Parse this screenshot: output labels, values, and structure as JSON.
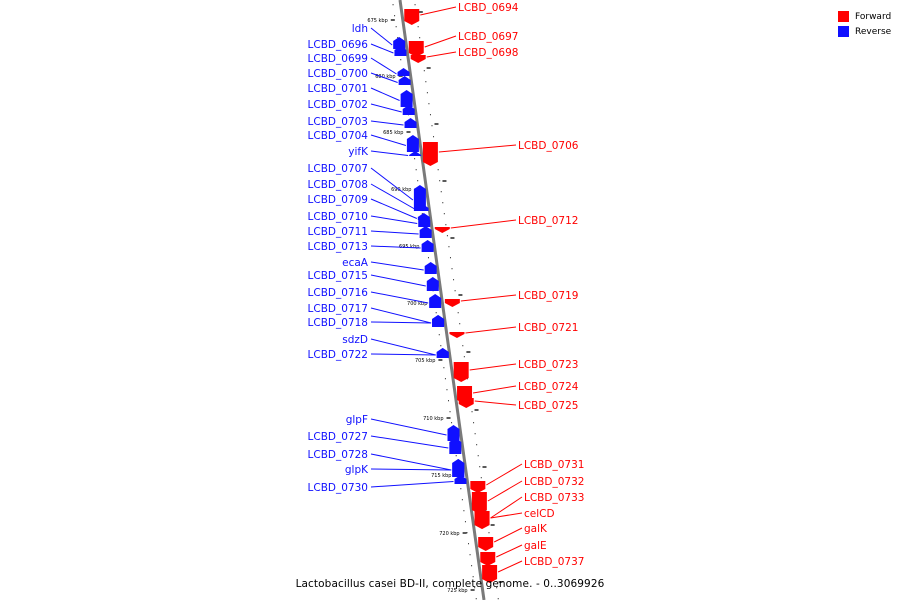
{
  "colors": {
    "forward": "#ff0000",
    "reverse": "#1010ff",
    "backbone": "#7a7a7a"
  },
  "legend": [
    {
      "label": "Forward",
      "color": "#ff0000"
    },
    {
      "label": "Reverse",
      "color": "#1010ff"
    }
  ],
  "caption": "Lactobacillus casei BD-II, complete genome. - 0..3069926",
  "ticks": [
    "675 kbp",
    "680 kbp",
    "685 kbp",
    "690 kbp",
    "695 kbp",
    "700 kbp",
    "705 kbp",
    "710 kbp",
    "715 kbp",
    "720 kbp",
    "725 kbp"
  ],
  "reverse_genes": [
    "ldh",
    "LCBD_0696",
    "LCBD_0699",
    "LCBD_0700",
    "LCBD_0701",
    "LCBD_0702",
    "LCBD_0703",
    "LCBD_0704",
    "yifK",
    "LCBD_0707",
    "LCBD_0708",
    "LCBD_0709",
    "LCBD_0710",
    "LCBD_0711",
    "LCBD_0713",
    "ecaA",
    "LCBD_0715",
    "LCBD_0716",
    "LCBD_0717",
    "LCBD_0718",
    "sdzD",
    "LCBD_0722",
    "glpF",
    "LCBD_0727",
    "LCBD_0728",
    "glpK",
    "LCBD_0730"
  ],
  "forward_genes": [
    "LCBD_0694",
    "LCBD_0697",
    "LCBD_0698",
    "LCBD_0706",
    "LCBD_0712",
    "LCBD_0719",
    "LCBD_0721",
    "LCBD_0723",
    "LCBD_0724",
    "LCBD_0725",
    "LCBD_0731",
    "LCBD_0732",
    "LCBD_0733",
    "celCD",
    "galK",
    "galE",
    "LCBD_0737"
  ]
}
